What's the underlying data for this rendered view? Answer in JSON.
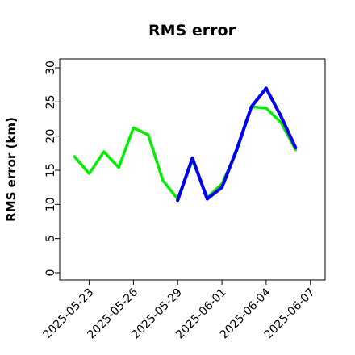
{
  "chart_data": {
    "type": "line",
    "title": "RMS error",
    "xlabel": "",
    "ylabel": "RMS error (km)",
    "ylim": [
      0,
      30
    ],
    "yticks": [
      0,
      5,
      10,
      15,
      20,
      25,
      30
    ],
    "xlim": [
      "2025-05-21",
      "2025-06-08"
    ],
    "xticks": [
      "2025-05-23",
      "2025-05-26",
      "2025-05-29",
      "2025-06-01",
      "2025-06-04",
      "2025-06-07"
    ],
    "highlighted_xtick": "2025-05-29",
    "highlight_color": "#008000",
    "grid": false,
    "legend": "none",
    "series": [
      {
        "color": "#00ee00",
        "x": [
          "2025-05-22",
          "2025-05-23",
          "2025-05-24",
          "2025-05-25",
          "2025-05-26",
          "2025-05-27",
          "2025-05-28",
          "2025-05-29",
          "2025-05-30",
          "2025-05-31",
          "2025-06-01",
          "2025-06-02",
          "2025-06-03",
          "2025-06-04",
          "2025-06-05",
          "2025-06-06"
        ],
        "values": [
          17.0,
          14.5,
          17.7,
          15.4,
          21.2,
          20.2,
          13.5,
          10.8,
          16.5,
          11.0,
          13.0,
          17.8,
          24.3,
          24.1,
          22.0,
          18.0
        ]
      },
      {
        "color": "#0000ee",
        "x": [
          "2025-05-29",
          "2025-05-30",
          "2025-05-31",
          "2025-06-01",
          "2025-06-02",
          "2025-06-03",
          "2025-06-04",
          "2025-06-05",
          "2025-06-06"
        ],
        "values": [
          10.6,
          16.8,
          10.8,
          12.5,
          18.0,
          24.3,
          27.0,
          22.9,
          18.3
        ]
      }
    ]
  }
}
